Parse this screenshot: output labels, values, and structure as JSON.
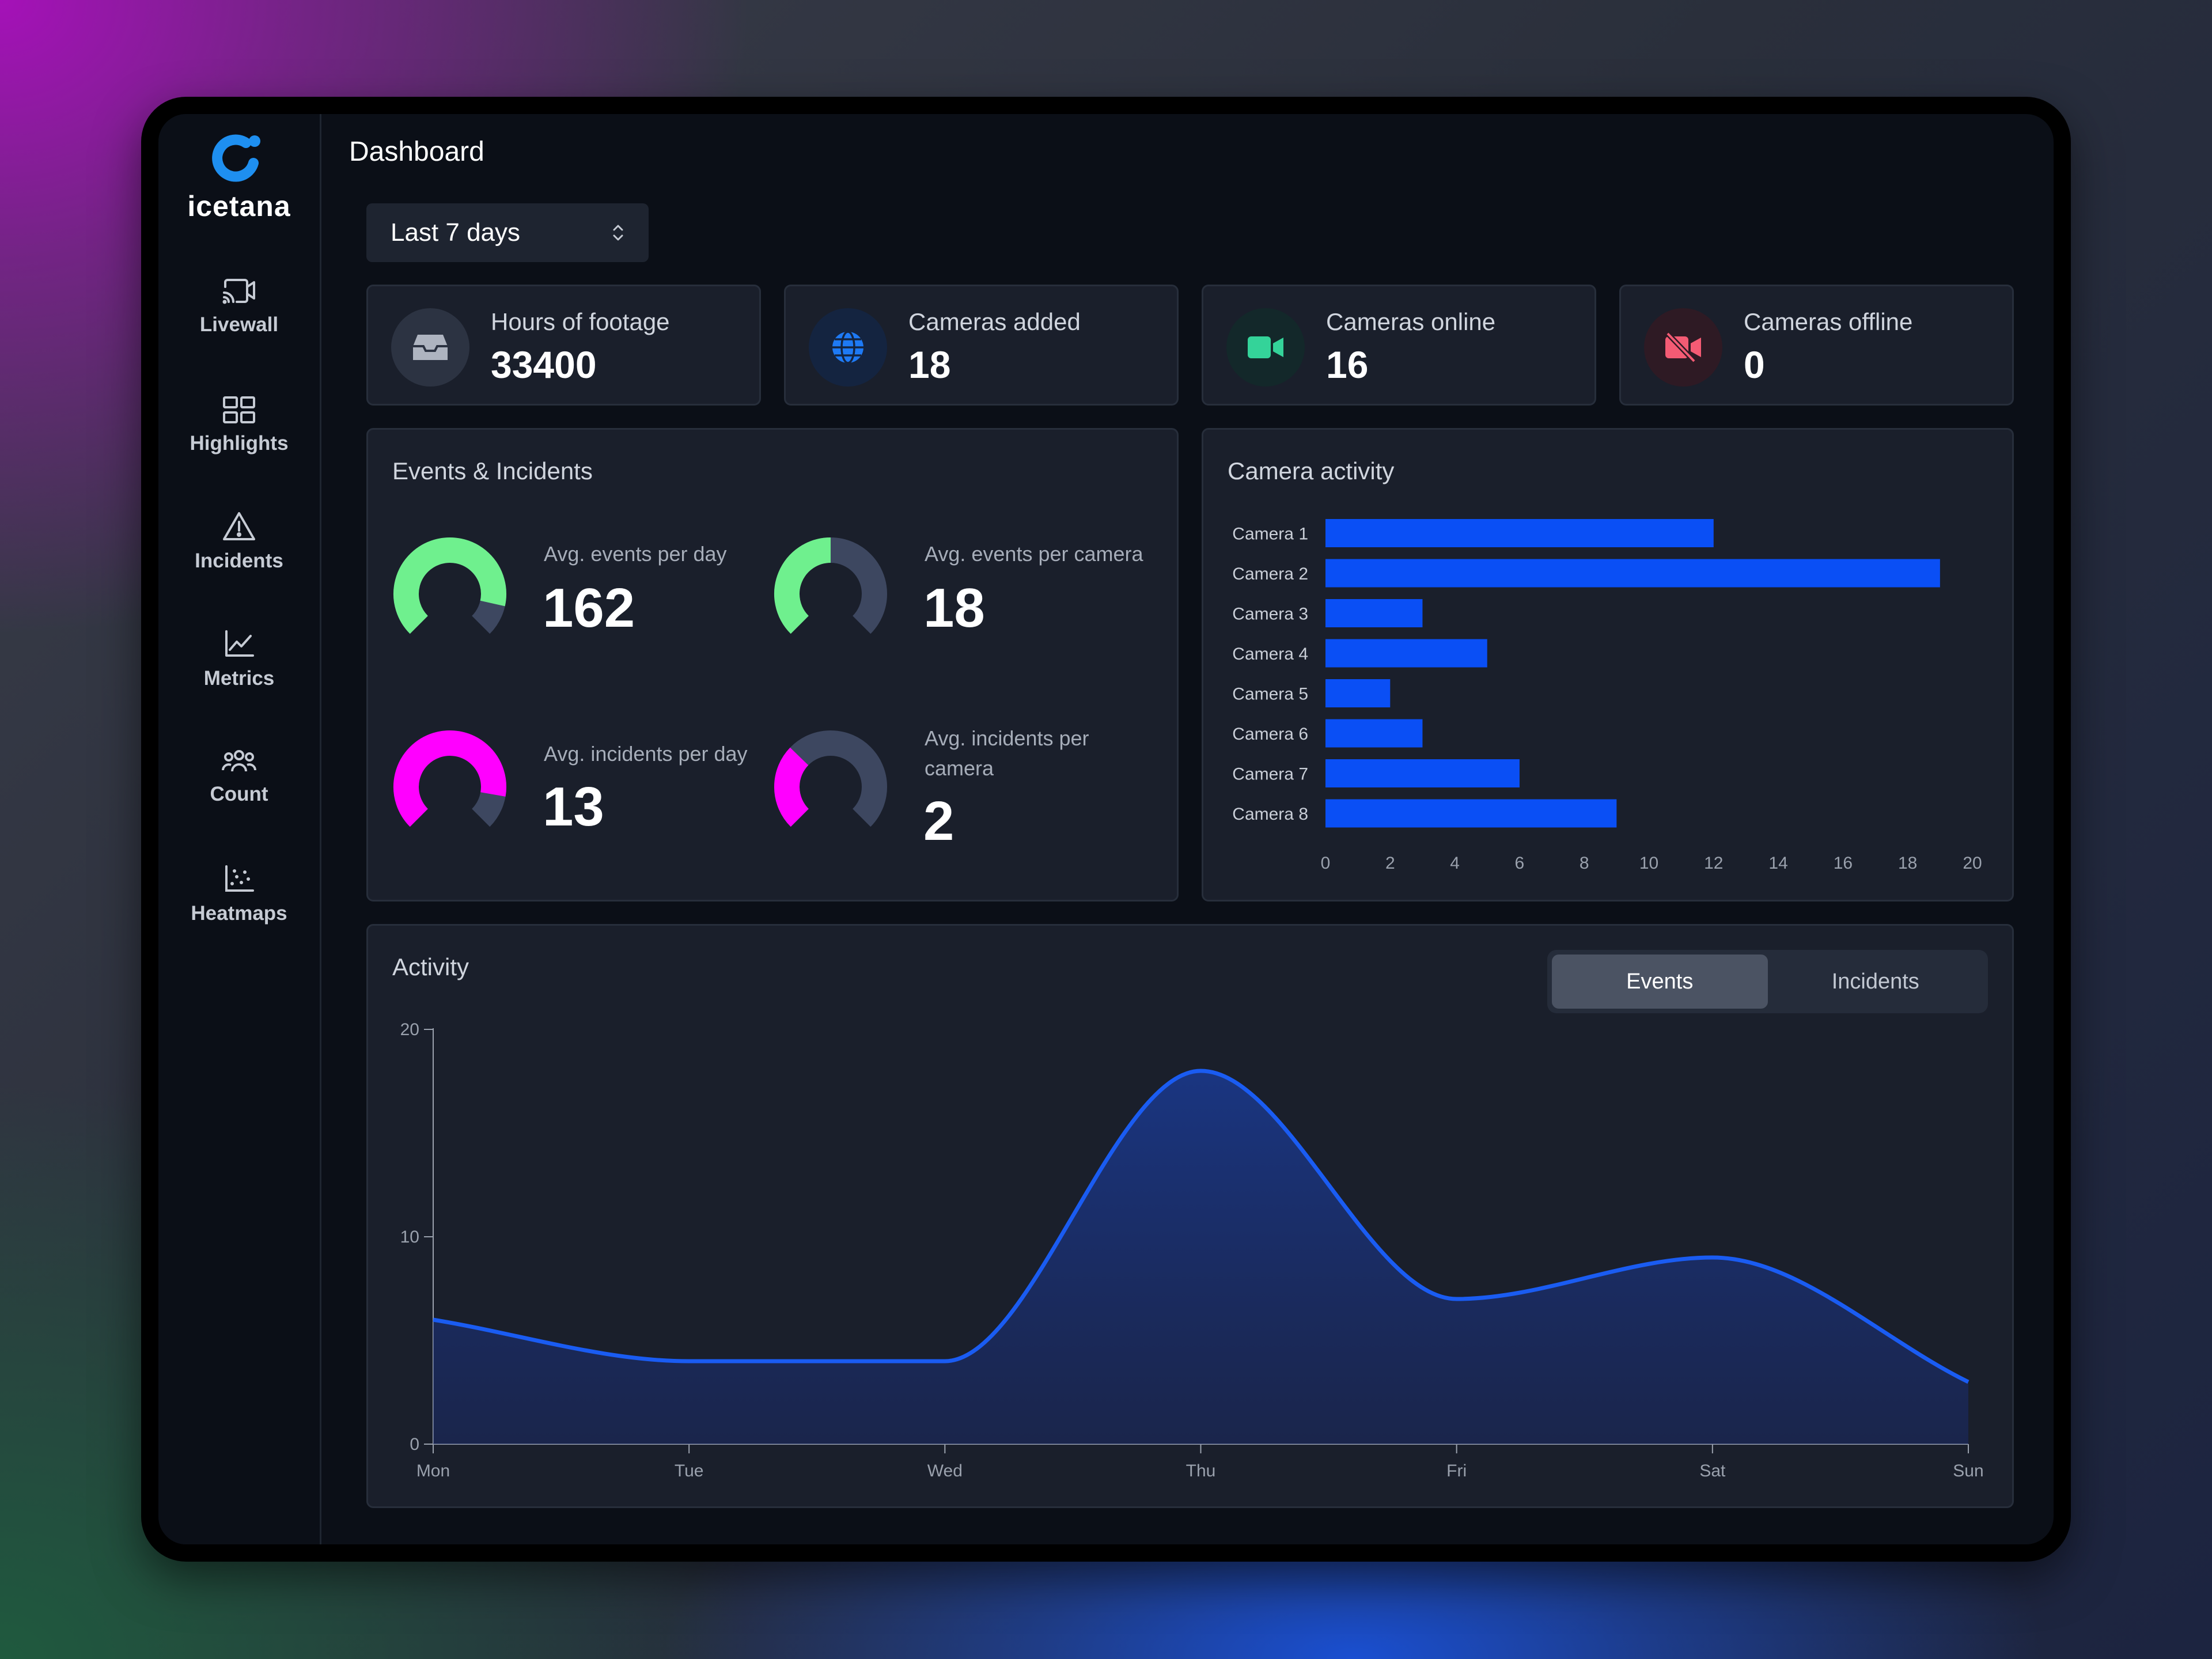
{
  "app": {
    "logo_text": "icetana",
    "page_title": "Dashboard"
  },
  "sidebar": {
    "items": [
      {
        "label": "Livewall",
        "icon": "cast-video-icon"
      },
      {
        "label": "Highlights",
        "icon": "grid-icon"
      },
      {
        "label": "Incidents",
        "icon": "warning-icon"
      },
      {
        "label": "Metrics",
        "icon": "line-chart-icon"
      },
      {
        "label": "Count",
        "icon": "people-icon"
      },
      {
        "label": "Heatmaps",
        "icon": "scatter-icon"
      }
    ]
  },
  "header": {
    "settings_icon": "gear-icon",
    "user_icon": "user-circle-icon"
  },
  "filters": {
    "time_range": "Last 7 days"
  },
  "stats": [
    {
      "label": "Hours of footage",
      "value": "33400",
      "icon": "inbox-icon",
      "color": "#aeb4c0"
    },
    {
      "label": "Cameras added",
      "value": "18",
      "icon": "globe-icon",
      "color": "#1e7af5"
    },
    {
      "label": "Cameras online",
      "value": "16",
      "icon": "video-camera-icon",
      "color": "#34d399"
    },
    {
      "label": "Cameras offline",
      "value": "0",
      "icon": "video-off-icon",
      "color": "#f45b74"
    }
  ],
  "events": {
    "title": "Events & Incidents",
    "gauges": [
      {
        "label": "Avg. events per day",
        "value": "162",
        "fill": 0.88,
        "color": "#6ff08e"
      },
      {
        "label": "Avg. events per camera",
        "value": "18",
        "fill": 0.5,
        "color": "#6ff08e"
      },
      {
        "label": "Avg. incidents per day",
        "value": "13",
        "fill": 0.87,
        "color": "#ff00ff"
      },
      {
        "label": "Avg. incidents per camera",
        "value": "2",
        "fill": 0.33,
        "color": "#ff00ff"
      }
    ]
  },
  "camera_activity": {
    "title": "Camera activity"
  },
  "activity": {
    "title": "Activity",
    "tabs": [
      {
        "label": "Events",
        "active": true
      },
      {
        "label": "Incidents",
        "active": false
      }
    ]
  },
  "chart_data": [
    {
      "type": "bar",
      "orientation": "horizontal",
      "title": "Camera activity",
      "categories": [
        "Camera 1",
        "Camera 2",
        "Camera 3",
        "Camera 4",
        "Camera 5",
        "Camera 6",
        "Camera 7",
        "Camera 8"
      ],
      "values": [
        12,
        19,
        3,
        5,
        2,
        3,
        6,
        9
      ],
      "xticks": [
        0,
        2,
        4,
        6,
        8,
        10,
        12,
        14,
        16,
        18,
        20
      ],
      "xlim": [
        0,
        20
      ],
      "color": "#0a4ff5",
      "grid": false
    },
    {
      "type": "area",
      "title": "Activity",
      "categories": [
        "Mon",
        "Tue",
        "Wed",
        "Thu",
        "Fri",
        "Sat",
        "Sun"
      ],
      "values": [
        6,
        4,
        4,
        18,
        7,
        9,
        3
      ],
      "yticks": [
        0,
        10,
        20
      ],
      "ylim": [
        0,
        20
      ],
      "color": "#1a5cf2",
      "grid": false
    }
  ]
}
